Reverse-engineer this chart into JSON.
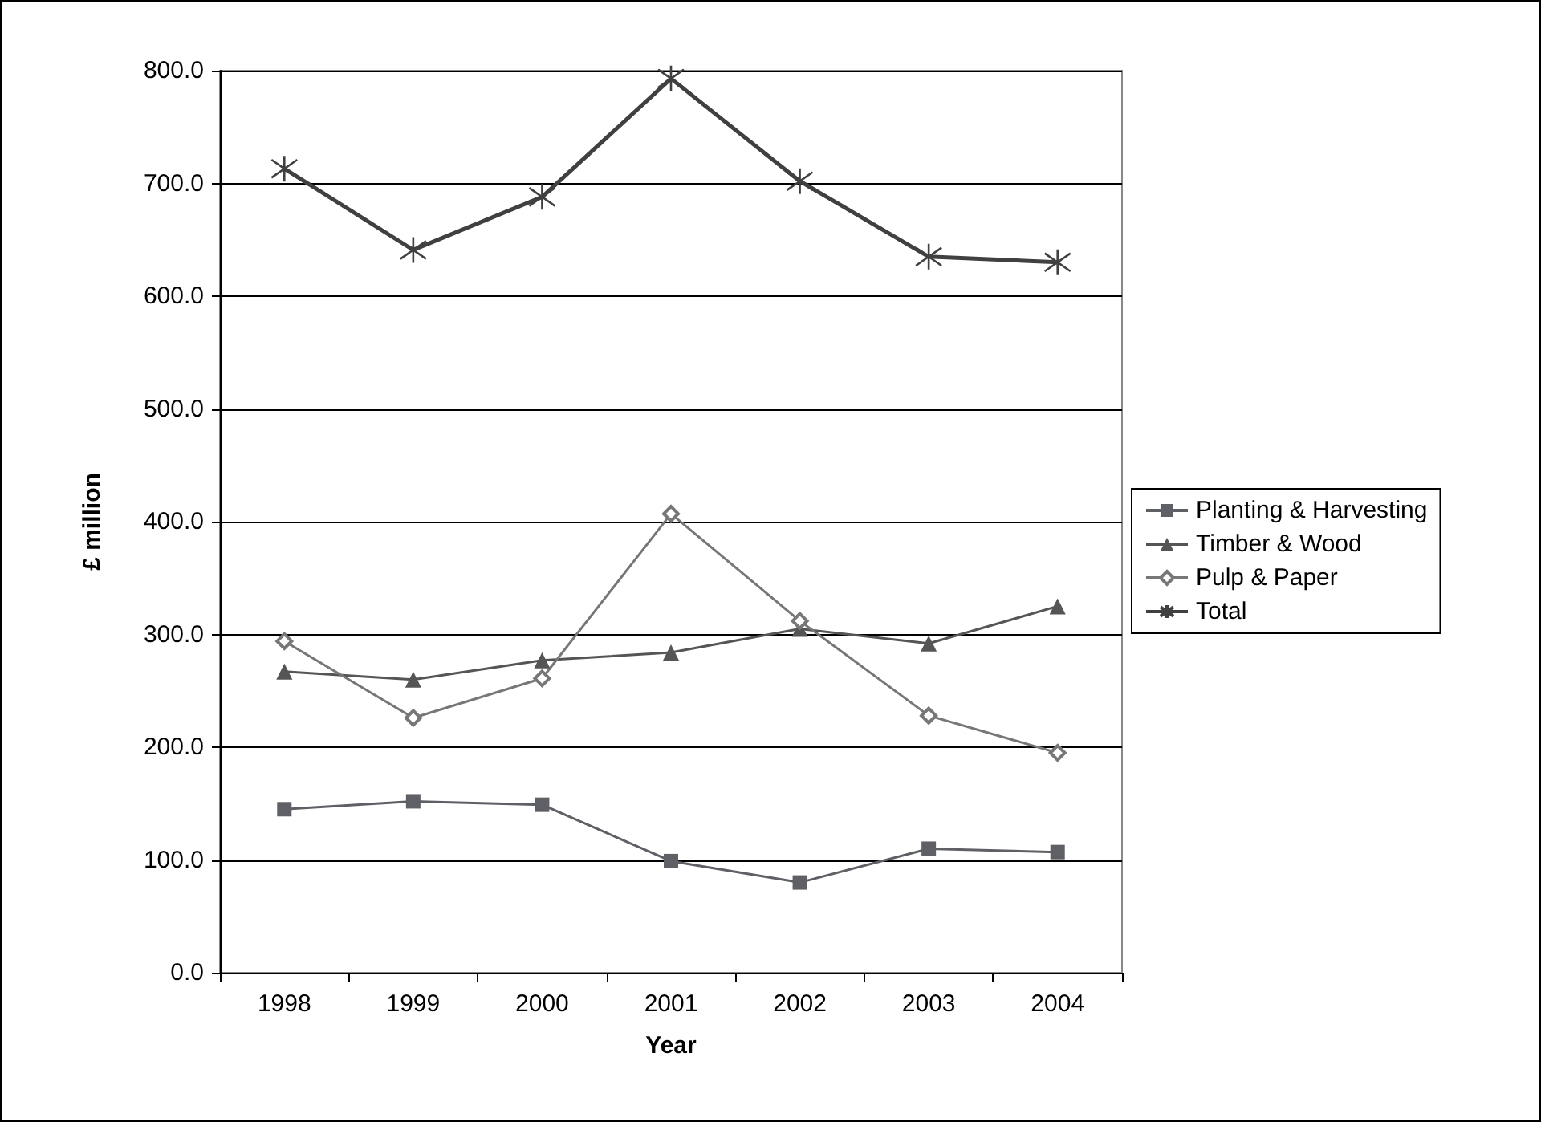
{
  "chart_data": {
    "type": "line",
    "xlabel": "Year",
    "ylabel": "£ million",
    "categories": [
      "1998",
      "1999",
      "2000",
      "2001",
      "2002",
      "2003",
      "2004"
    ],
    "series": [
      {
        "name": "Planting & Harvesting",
        "color": "#5f6066",
        "marker": "square",
        "values": [
          145,
          152,
          149,
          99,
          80,
          110,
          107
        ]
      },
      {
        "name": "Timber & Wood",
        "color": "#555555",
        "marker": "triangle",
        "values": [
          267,
          260,
          277,
          284,
          305,
          292,
          325
        ]
      },
      {
        "name": "Pulp & Paper",
        "color": "#777777",
        "marker": "diamond",
        "values": [
          294,
          226,
          261,
          407,
          312,
          228,
          195
        ]
      },
      {
        "name": "Total",
        "color": "#404040",
        "marker": "cross",
        "values": [
          713,
          641,
          688,
          793,
          702,
          635,
          630
        ]
      }
    ],
    "ylim": [
      0,
      800
    ],
    "yticks": [
      {
        "value": 0,
        "label": "0.0"
      },
      {
        "value": 100,
        "label": "100.0"
      },
      {
        "value": 200,
        "label": "200.0"
      },
      {
        "value": 300,
        "label": "300.0"
      },
      {
        "value": 400,
        "label": "400.0"
      },
      {
        "value": 500,
        "label": "500.0"
      },
      {
        "value": 600,
        "label": "600.0"
      },
      {
        "value": 700,
        "label": "700.0"
      },
      {
        "value": 800,
        "label": "800.0"
      }
    ],
    "grid": "y",
    "legend": "right"
  }
}
